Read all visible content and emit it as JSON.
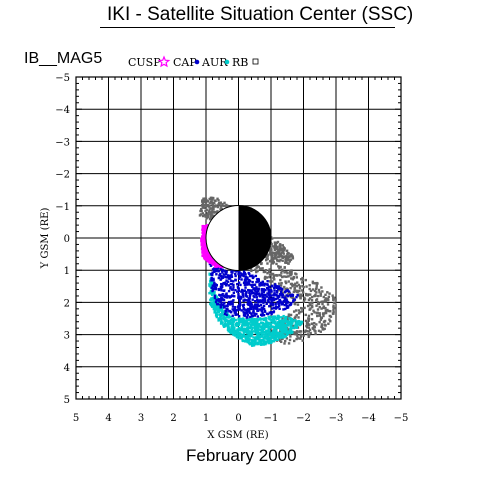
{
  "header": {
    "title": "IKI - Satellite Situation Center (SSC)"
  },
  "satellite": "IB__MAG5",
  "footer": {
    "date": "February    2000"
  },
  "chart_data": {
    "type": "scatter",
    "xlabel": "X GSM (RE)",
    "ylabel": "Y GSM (RE)",
    "xlim": [
      5,
      -5
    ],
    "ylim": [
      -5,
      5
    ],
    "grid": true,
    "x_ticks": [
      "5",
      "4",
      "3",
      "2",
      "1",
      "0",
      "−1",
      "−2",
      "−3",
      "−4",
      "−5"
    ],
    "y_ticks": [
      "−5",
      "−4",
      "−3",
      "−2",
      "−1",
      "0",
      "1",
      "2",
      "3",
      "4",
      "5"
    ],
    "legend": [
      {
        "label": "CUSP",
        "symbol": "star",
        "color": "#ff00ff"
      },
      {
        "label": "CAP",
        "symbol": "dot",
        "color": "#0000cc"
      },
      {
        "label": "AUR",
        "symbol": "dot",
        "color": "#00cccc"
      },
      {
        "label": "RB",
        "symbol": "square",
        "color": "#666666"
      }
    ],
    "earth": {
      "center": [
        0,
        0
      ],
      "radius": 1,
      "night_side": "negative-x"
    },
    "regions": [
      {
        "name": "CUSP",
        "color": "#ff00ff",
        "polygon": [
          [
            1.1,
            -0.4
          ],
          [
            0.7,
            -0.4
          ],
          [
            0.25,
            -0.1
          ],
          [
            0.2,
            0.5
          ],
          [
            0.3,
            0.9
          ],
          [
            0.7,
            0.9
          ],
          [
            1.1,
            0.6
          ],
          [
            1.15,
            0.1
          ]
        ]
      },
      {
        "name": "CAP",
        "color": "#0000cc",
        "polygon": [
          [
            0.9,
            0.8
          ],
          [
            0.4,
            1.0
          ],
          [
            -0.2,
            1.0
          ],
          [
            -0.8,
            1.3
          ],
          [
            -1.5,
            1.6
          ],
          [
            -1.9,
            1.8
          ],
          [
            -1.5,
            2.2
          ],
          [
            -0.9,
            2.4
          ],
          [
            -0.3,
            2.5
          ],
          [
            0.4,
            2.4
          ],
          [
            0.8,
            1.9
          ]
        ]
      },
      {
        "name": "AUR",
        "color": "#00cccc",
        "polygon": [
          [
            0.9,
            1.0
          ],
          [
            0.9,
            2.0
          ],
          [
            0.6,
            2.6
          ],
          [
            0.2,
            3.0
          ],
          [
            -0.4,
            3.35
          ],
          [
            -0.9,
            3.3
          ],
          [
            -1.6,
            3.0
          ],
          [
            -2.0,
            2.6
          ],
          [
            -1.3,
            2.4
          ],
          [
            -0.6,
            2.5
          ],
          [
            0.2,
            2.5
          ],
          [
            0.6,
            2.0
          ]
        ]
      },
      {
        "name": "RB",
        "color": "#666666",
        "polygon": [
          [
            -0.9,
            0.4
          ],
          [
            -1.3,
            0.8
          ],
          [
            -2.0,
            1.2
          ],
          [
            -2.7,
            1.5
          ],
          [
            -3.0,
            1.9
          ],
          [
            -2.9,
            2.5
          ],
          [
            -2.6,
            2.9
          ],
          [
            -2.0,
            3.2
          ],
          [
            -1.4,
            3.3
          ],
          [
            -0.9,
            3.1
          ],
          [
            -1.3,
            2.5
          ],
          [
            -1.8,
            2.2
          ],
          [
            -1.2,
            1.6
          ],
          [
            -0.6,
            1.1
          ],
          [
            -0.1,
            0.95
          ]
        ]
      },
      {
        "name": "RB",
        "color": "#666666",
        "polygon": [
          [
            1.1,
            -1.25
          ],
          [
            0.7,
            -1.25
          ],
          [
            0.3,
            -1.05
          ],
          [
            0.35,
            -0.7
          ],
          [
            0.85,
            -0.55
          ],
          [
            1.2,
            -0.7
          ]
        ]
      },
      {
        "name": "RB",
        "color": "#666666",
        "polygon": [
          [
            -0.9,
            -0.1
          ],
          [
            -1.35,
            0.2
          ],
          [
            -1.7,
            0.6
          ],
          [
            -1.55,
            0.8
          ],
          [
            -1.1,
            0.7
          ],
          [
            -0.85,
            0.3
          ]
        ]
      }
    ],
    "point_counts": {
      "CUSP": 220,
      "CAP": 420,
      "AUR": 620,
      "RB": 900
    }
  }
}
